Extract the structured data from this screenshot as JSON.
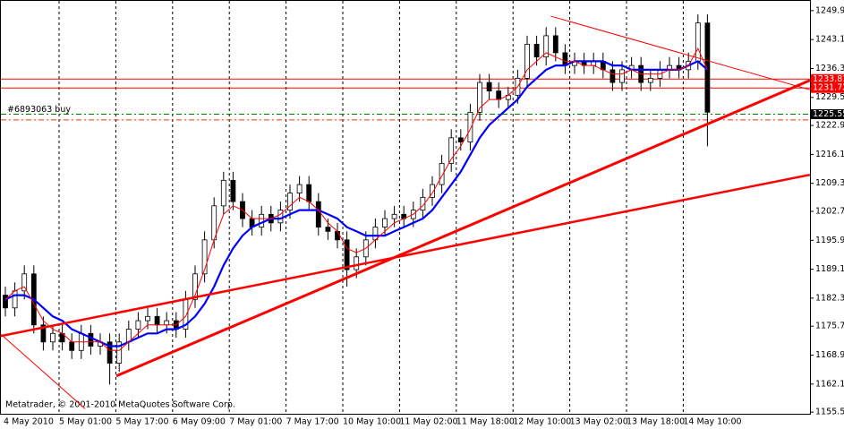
{
  "chart_data": {
    "type": "candlestick",
    "up_color": "#ffffff",
    "down_color": "#000000",
    "open": [
      1183,
      1180,
      1184,
      1188,
      1176,
      1172,
      1174,
      1172,
      1170,
      1174,
      1171,
      1172,
      1167,
      1172,
      1175,
      1177,
      1178,
      1176,
      1177,
      1175,
      1182,
      1188,
      1196,
      1204,
      1210,
      1205,
      1201,
      1199,
      1202,
      1200,
      1203,
      1207,
      1209,
      1205,
      1199,
      1198,
      1196,
      1189,
      1192,
      1196,
      1199,
      1201,
      1202,
      1201,
      1203,
      1206,
      1209,
      1214,
      1220,
      1219,
      1226,
      1233,
      1231,
      1229,
      1230,
      1234,
      1242,
      1239,
      1244,
      1240,
      1237,
      1238,
      1237,
      1238,
      1236,
      1233,
      1236,
      1237,
      1233,
      1234,
      1236,
      1237,
      1236,
      1238,
      1247
    ],
    "high": [
      1185,
      1186,
      1190,
      1190,
      1178,
      1176,
      1176,
      1174,
      1176,
      1176,
      1174,
      1174,
      1174,
      1177,
      1179,
      1180,
      1180,
      1179,
      1179,
      1184,
      1190,
      1198,
      1206,
      1212,
      1212,
      1207,
      1203,
      1204,
      1204,
      1205,
      1209,
      1211,
      1211,
      1207,
      1201,
      1200,
      1198,
      1194,
      1198,
      1201,
      1203,
      1204,
      1204,
      1205,
      1208,
      1211,
      1216,
      1222,
      1222,
      1228,
      1235,
      1235,
      1233,
      1232,
      1236,
      1244,
      1244,
      1246,
      1246,
      1242,
      1240,
      1240,
      1240,
      1240,
      1238,
      1238,
      1239,
      1239,
      1236,
      1238,
      1239,
      1239,
      1240,
      1249,
      1249
    ],
    "low": [
      1178,
      1178,
      1182,
      1174,
      1170,
      1170,
      1170,
      1168,
      1168,
      1169,
      1169,
      1162,
      1165,
      1170,
      1173,
      1175,
      1174,
      1174,
      1173,
      1173,
      1180,
      1186,
      1194,
      1202,
      1203,
      1199,
      1197,
      1197,
      1198,
      1198,
      1201,
      1205,
      1203,
      1197,
      1196,
      1194,
      1185,
      1187,
      1190,
      1194,
      1197,
      1199,
      1199,
      1199,
      1201,
      1204,
      1207,
      1212,
      1217,
      1217,
      1224,
      1229,
      1227,
      1227,
      1228,
      1232,
      1237,
      1237,
      1238,
      1235,
      1235,
      1235,
      1235,
      1234,
      1231,
      1231,
      1234,
      1231,
      1231,
      1232,
      1234,
      1234,
      1234,
      1236,
      1218
    ],
    "close": [
      1180,
      1184,
      1188,
      1176,
      1172,
      1174,
      1172,
      1170,
      1174,
      1171,
      1172,
      1167,
      1172,
      1175,
      1177,
      1178,
      1176,
      1177,
      1175,
      1182,
      1188,
      1196,
      1204,
      1210,
      1205,
      1201,
      1199,
      1202,
      1200,
      1203,
      1207,
      1209,
      1205,
      1199,
      1198,
      1196,
      1189,
      1192,
      1196,
      1199,
      1201,
      1202,
      1201,
      1203,
      1206,
      1209,
      1214,
      1220,
      1219,
      1226,
      1233,
      1231,
      1229,
      1230,
      1234,
      1242,
      1239,
      1244,
      1240,
      1237,
      1238,
      1237,
      1238,
      1236,
      1233,
      1236,
      1237,
      1233,
      1234,
      1236,
      1237,
      1236,
      1238,
      1247,
      1226
    ],
    "series": [
      {
        "color": "#0000ff",
        "width": 2.2,
        "values": [
          1182,
          1183,
          1183,
          1182,
          1180,
          1178,
          1177,
          1175,
          1174,
          1173,
          1172,
          1171,
          1171,
          1172,
          1173,
          1174,
          1174,
          1175,
          1175,
          1176,
          1178,
          1181,
          1185,
          1190,
          1194,
          1197,
          1199,
          1200,
          1201,
          1201,
          1202,
          1203,
          1203,
          1203,
          1202,
          1201,
          1199,
          1198,
          1197,
          1197,
          1197,
          1198,
          1199,
          1200,
          1201,
          1203,
          1206,
          1209,
          1212,
          1216,
          1220,
          1223,
          1225,
          1227,
          1229,
          1232,
          1234,
          1236,
          1237,
          1237,
          1238,
          1238,
          1238,
          1238,
          1237,
          1237,
          1236,
          1236,
          1236,
          1236,
          1236,
          1236,
          1237,
          1238,
          1236
        ]
      },
      {
        "color": "#ff0000",
        "width": 1,
        "values": [
          1182,
          1184,
          1185,
          1181,
          1177,
          1175,
          1174,
          1172,
          1172,
          1172,
          1172,
          1170,
          1170,
          1172,
          1174,
          1176,
          1176,
          1176,
          1176,
          1178,
          1183,
          1189,
          1196,
          1202,
          1204,
          1203,
          1201,
          1201,
          1201,
          1202,
          1204,
          1206,
          1205,
          1203,
          1200,
          1198,
          1194,
          1193,
          1194,
          1196,
          1198,
          1200,
          1201,
          1202,
          1204,
          1207,
          1211,
          1215,
          1218,
          1222,
          1227,
          1229,
          1229,
          1230,
          1232,
          1236,
          1238,
          1240,
          1239,
          1238,
          1238,
          1237,
          1237,
          1236,
          1235,
          1235,
          1236,
          1235,
          1235,
          1235,
          1236,
          1236,
          1237,
          1241,
          1236
        ]
      }
    ],
    "time_labels": [
      "4 May 2010",
      "5 May 01:00",
      "5 May 17:00",
      "6 May 09:00",
      "7 May 01:00",
      "7 May 17:00",
      "10 May 10:00",
      "11 May 02:00",
      "11 May 18:00",
      "12 May 10:00",
      "13 May 02:00",
      "13 May 18:00",
      "14 May 10:00"
    ],
    "ylim": [
      1154.9,
      1252.4
    ],
    "yticks": [
      {
        "value": 1249.9,
        "label": "1249.90"
      },
      {
        "value": 1243.1,
        "label": "1243.10"
      },
      {
        "value": 1236.3,
        "label": "1236.30"
      },
      {
        "value": 1229.5,
        "label": "1229.50"
      },
      {
        "value": 1222.9,
        "label": "1222.90"
      },
      {
        "value": 1216.1,
        "label": "1216.10"
      },
      {
        "value": 1209.3,
        "label": "1209.30"
      },
      {
        "value": 1202.7,
        "label": "1202.70"
      },
      {
        "value": 1195.9,
        "label": "1195.90"
      },
      {
        "value": 1189.1,
        "label": "1189.10"
      },
      {
        "value": 1182.3,
        "label": "1182.30"
      },
      {
        "value": 1175.7,
        "label": "1175.70"
      },
      {
        "value": 1168.9,
        "label": "1168.90"
      },
      {
        "value": 1162.1,
        "label": "1162.10"
      },
      {
        "value": 1155.5,
        "label": "1155.50"
      }
    ],
    "levels": [
      {
        "value": 1233.81,
        "color": "#ff0000",
        "dash": "none",
        "label_bg": "#ff0000"
      },
      {
        "value": 1231.72,
        "color": "#ff0000",
        "dash": "none",
        "label_bg": "#ff0000"
      },
      {
        "value": 1225.55,
        "color": "#008000",
        "dash": "6 3 2 3",
        "label_bg": "#000000",
        "note": "#6893063 buy"
      },
      {
        "value": 1224.2,
        "color": "#ff3300",
        "dash": "6 3 2 3"
      }
    ],
    "trendlines": [
      {
        "from": [
          11.7,
          1164
        ],
        "to": [
          84.8,
          1233.5
        ],
        "color": "#ff0000",
        "width": 3
      },
      {
        "from": [
          -0.6,
          1173.4
        ],
        "to": [
          84.8,
          1211.3
        ],
        "color": "#ff0000",
        "width": 2.5
      },
      {
        "from": [
          57.5,
          1248.6
        ],
        "to": [
          84.8,
          1231.3
        ],
        "color": "#ff0000",
        "width": 1
      },
      {
        "from": [
          -0.6,
          1173.8
        ],
        "to": [
          8.4,
          1156.3
        ],
        "color": "#ff0000",
        "width": 1
      }
    ],
    "copyright": "Metatrader, © 2001-2010 MetaQuotes Software Corp."
  }
}
